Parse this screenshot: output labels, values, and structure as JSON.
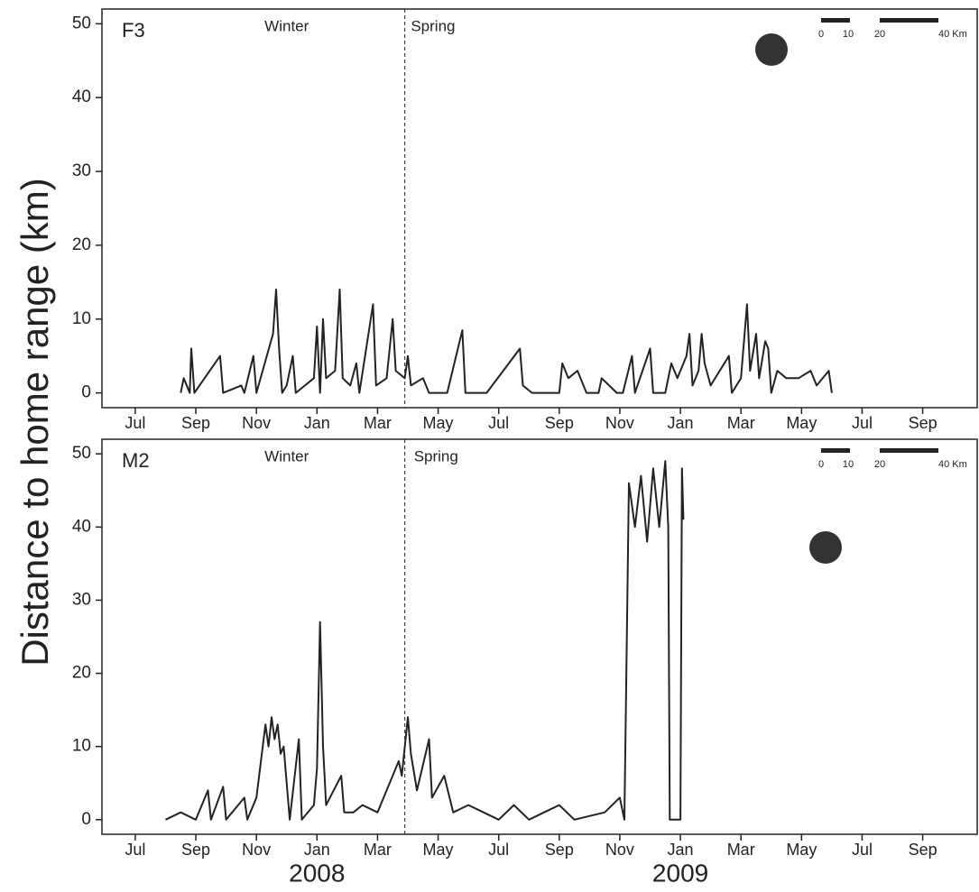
{
  "ylabel": "Distance to home range (km)",
  "year_labels": [
    {
      "value": 6,
      "label": "2008"
    },
    {
      "value": 18,
      "label": "2009"
    }
  ],
  "chart_data": [
    {
      "type": "line",
      "panel_label": "F3",
      "season_labels": [
        {
          "value": 5,
          "label": "Winter"
        },
        {
          "value": 9.1,
          "label": "Spring"
        }
      ],
      "season_line": 8.9,
      "scale_labels": [
        "0",
        "10",
        "20",
        "40 Km"
      ],
      "xlim": [
        -1.1,
        27.8
      ],
      "ylim": [
        -2,
        52
      ],
      "yticks": [
        0,
        10,
        20,
        30,
        40,
        50
      ],
      "xticks": [
        {
          "value": 0,
          "label": "Jul"
        },
        {
          "value": 2,
          "label": "Sep"
        },
        {
          "value": 4,
          "label": "Nov"
        },
        {
          "value": 6,
          "label": "Jan"
        },
        {
          "value": 8,
          "label": "Mar"
        },
        {
          "value": 10,
          "label": "May"
        },
        {
          "value": 12,
          "label": "Jul"
        },
        {
          "value": 14,
          "label": "Sep"
        },
        {
          "value": 16,
          "label": "Nov"
        },
        {
          "value": 18,
          "label": "Jan"
        },
        {
          "value": 20,
          "label": "Mar"
        },
        {
          "value": 22,
          "label": "May"
        },
        {
          "value": 24,
          "label": "Jul"
        },
        {
          "value": 26,
          "label": "Sep"
        }
      ],
      "series": [
        {
          "color": "#222222",
          "x": [
            1.5,
            1.6,
            1.8,
            1.85,
            1.95,
            2.8,
            2.9,
            3.5,
            3.6,
            3.9,
            4.0,
            4.55,
            4.65,
            4.75,
            4.85,
            5.0,
            5.2,
            5.3,
            5.9,
            6.0,
            6.1,
            6.2,
            6.3,
            6.6,
            6.75,
            6.85,
            7.1,
            7.3,
            7.4,
            7.85,
            7.95,
            8.3,
            8.5,
            8.6,
            8.9,
            9.0,
            9.1,
            9.5,
            9.7,
            10.3,
            10.8,
            10.9,
            11.6,
            12.7,
            12.8,
            13.1,
            14.0,
            14.1,
            14.3,
            14.6,
            14.9,
            15.3,
            15.4,
            15.9,
            16.1,
            16.4,
            16.5,
            17.0,
            17.1,
            17.5,
            17.7,
            17.9,
            18.2,
            18.3,
            18.4,
            18.6,
            18.7,
            18.8,
            19.0,
            19.6,
            19.7,
            20.0,
            20.2,
            20.3,
            20.5,
            20.6,
            20.8,
            20.9,
            21.0,
            21.2,
            21.5,
            21.9,
            22.3,
            22.5,
            22.9,
            23.0
          ],
          "values": [
            0,
            2,
            0,
            6,
            0,
            5,
            0,
            1,
            0,
            5,
            0,
            8,
            14,
            6,
            0,
            1,
            5,
            0,
            2,
            9,
            0,
            10,
            2,
            3,
            14,
            2,
            1,
            4,
            0,
            12,
            1,
            2,
            10,
            3,
            2,
            5,
            1,
            2,
            0,
            0,
            8.5,
            0,
            0,
            6,
            1,
            0,
            0,
            4,
            2,
            3,
            0,
            0,
            2,
            0,
            0,
            5,
            0,
            6,
            0,
            0,
            4,
            2,
            5,
            8,
            1,
            3,
            8,
            4,
            1,
            5,
            0,
            2,
            12,
            3,
            8,
            2,
            7,
            6,
            0,
            3,
            2,
            2,
            3,
            1,
            3,
            0
          ]
        }
      ]
    },
    {
      "type": "line",
      "panel_label": "M2",
      "season_labels": [
        {
          "value": 5,
          "label": "Winter"
        },
        {
          "value": 9.2,
          "label": "Spring"
        }
      ],
      "season_line": 8.9,
      "scale_labels": [
        "0",
        "10",
        "20",
        "40 Km"
      ],
      "xlim": [
        -1.1,
        27.8
      ],
      "ylim": [
        -2,
        52
      ],
      "yticks": [
        0,
        10,
        20,
        30,
        40,
        50
      ],
      "xticks": [
        {
          "value": 0,
          "label": "Jul"
        },
        {
          "value": 2,
          "label": "Sep"
        },
        {
          "value": 4,
          "label": "Nov"
        },
        {
          "value": 6,
          "label": "Jan"
        },
        {
          "value": 8,
          "label": "Mar"
        },
        {
          "value": 10,
          "label": "May"
        },
        {
          "value": 12,
          "label": "Jul"
        },
        {
          "value": 14,
          "label": "Sep"
        },
        {
          "value": 16,
          "label": "Nov"
        },
        {
          "value": 18,
          "label": "Jan"
        },
        {
          "value": 20,
          "label": "Mar"
        },
        {
          "value": 22,
          "label": "May"
        },
        {
          "value": 24,
          "label": "Jul"
        },
        {
          "value": 26,
          "label": "Sep"
        }
      ],
      "series": [
        {
          "color": "#222222",
          "x": [
            1.0,
            1.5,
            2.0,
            2.4,
            2.5,
            2.9,
            3.0,
            3.6,
            3.7,
            4.0,
            4.3,
            4.4,
            4.5,
            4.6,
            4.7,
            4.8,
            4.9,
            5.0,
            5.1,
            5.4,
            5.5,
            5.9,
            6.0,
            6.1,
            6.2,
            6.3,
            6.8,
            6.9,
            7.2,
            7.5,
            8.0,
            8.7,
            8.8,
            9.0,
            9.1,
            9.3,
            9.7,
            9.8,
            10.2,
            10.5,
            11.0,
            11.5,
            12.0,
            12.5,
            13.0,
            13.5,
            14.0,
            14.5,
            15.5,
            16.0,
            16.15,
            16.3,
            16.5,
            16.7,
            16.9,
            17.1,
            17.3,
            17.5,
            17.6,
            17.65,
            18.0,
            18.05,
            18.1
          ],
          "values": [
            0,
            1,
            0,
            4,
            0,
            4.5,
            0,
            3,
            0,
            3,
            13,
            10,
            14,
            11,
            13,
            9,
            10,
            5,
            0,
            11,
            0,
            2,
            7,
            27,
            10,
            2,
            6,
            1,
            1,
            2,
            1,
            8,
            6,
            14,
            9,
            4,
            11,
            3,
            6,
            1,
            2,
            1,
            0,
            2,
            0,
            1,
            2,
            0,
            1,
            3,
            0,
            46,
            40,
            47,
            38,
            48,
            40,
            49,
            40,
            0,
            0,
            48,
            41
          ]
        }
      ]
    }
  ]
}
